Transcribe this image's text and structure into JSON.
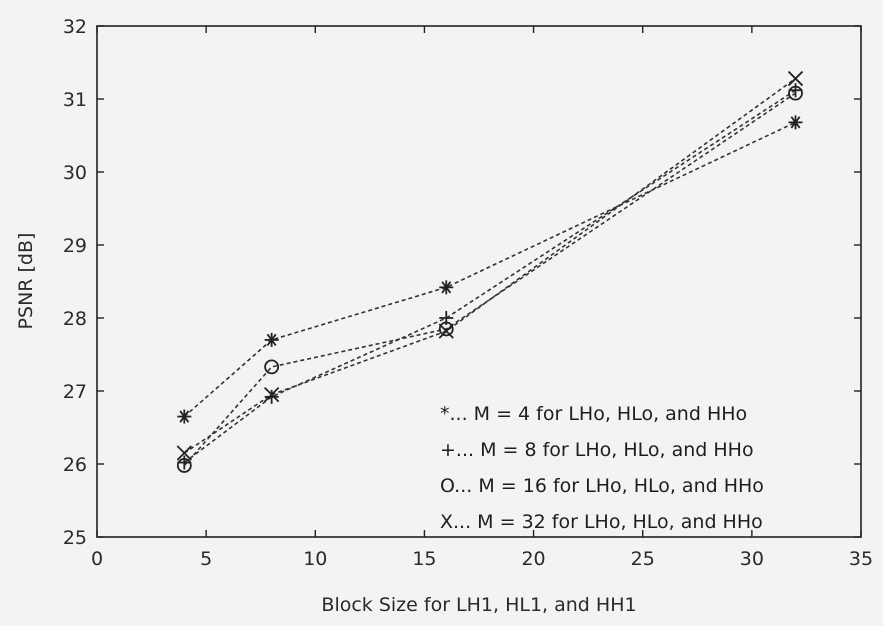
{
  "chart_data": {
    "type": "line",
    "xlabel": "Block Size for LH1, HL1, and HH1",
    "ylabel": "PSNR [dB]",
    "xlim": [
      0,
      35
    ],
    "ylim": [
      25,
      32
    ],
    "xticks": [
      0,
      5,
      10,
      15,
      20,
      25,
      30,
      35
    ],
    "yticks": [
      25,
      26,
      27,
      28,
      29,
      30,
      31,
      32
    ],
    "grid": false,
    "legend_position": "bottom-right",
    "x": [
      4,
      8,
      16,
      32
    ],
    "series": [
      {
        "legend": "*... M = 4 for LHo, HLo, and HHo",
        "marker": "asterisk",
        "values": [
          26.65,
          27.7,
          28.42,
          30.68
        ]
      },
      {
        "legend": "+... M = 8 for LHo, HLo, and HHo",
        "marker": "plus",
        "values": [
          26.02,
          26.92,
          28.0,
          31.12
        ]
      },
      {
        "legend": "O... M = 16 for LHo, HLo, and HHo",
        "marker": "circle",
        "values": [
          25.98,
          27.33,
          27.85,
          31.08
        ]
      },
      {
        "legend": "X... M = 32 for LHo, HLo, and HHo",
        "marker": "x",
        "values": [
          26.15,
          26.95,
          27.82,
          31.28
        ]
      }
    ]
  }
}
